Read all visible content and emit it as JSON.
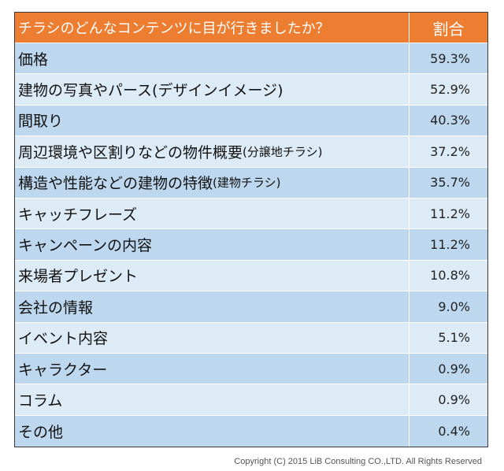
{
  "header": {
    "question": "チラシのどんなコンテンツに目が行きましたか？",
    "ratio": "割合"
  },
  "rows": [
    {
      "label": "価格",
      "value": "59.3%"
    },
    {
      "label": "建物の写真やパース(デザインイメージ)",
      "value": "52.9%"
    },
    {
      "label": "間取り",
      "value": "40.3%"
    },
    {
      "label": "周辺環境や区割りなどの物件概要",
      "note": "(分譲地チラシ)",
      "value": "37.2%"
    },
    {
      "label": "構造や性能などの建物の特徴",
      "note": "(建物チラシ)",
      "value": "35.7%"
    },
    {
      "label": "キャッチフレーズ",
      "value": "11.2%"
    },
    {
      "label": "キャンペーンの内容",
      "value": "11.2%"
    },
    {
      "label": "来場者プレゼント",
      "value": "10.8%"
    },
    {
      "label": "会社の情報",
      "value": "9.0%"
    },
    {
      "label": "イベント内容",
      "value": "5.1%"
    },
    {
      "label": "キャラクター",
      "value": "0.9%"
    },
    {
      "label": "コラム",
      "value": "0.9%"
    },
    {
      "label": "その他",
      "value": "0.4%"
    }
  ],
  "colors": {
    "header": "#ed7d31",
    "row_dark": "#bdd7ee",
    "row_light": "#ddebf7"
  },
  "footer": {
    "copyright": "Copyright (C) 2015 LiB Consulting CO.,LTD. All Rights Reserved"
  }
}
